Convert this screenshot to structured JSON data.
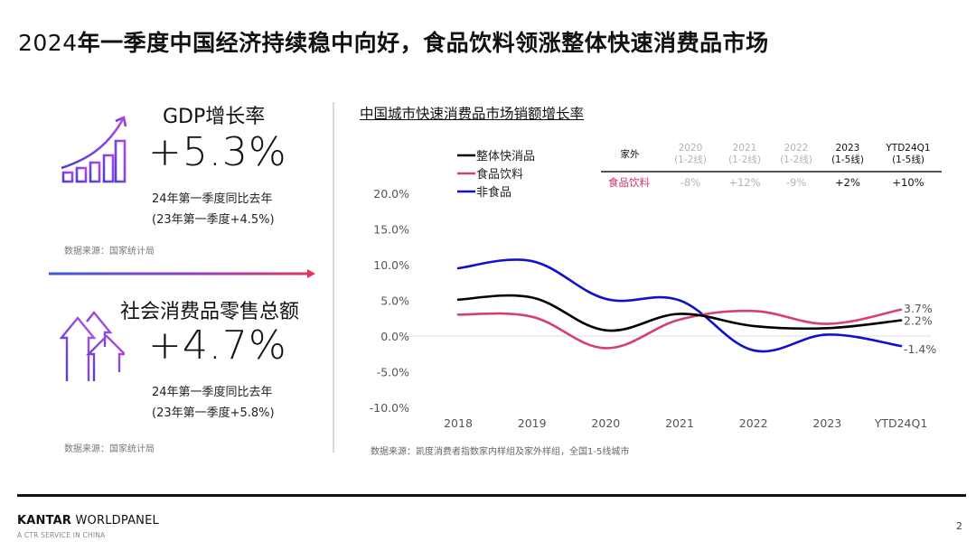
{
  "page": {
    "title_prefix": "2024",
    "title_rest": "年一季度中国经济持续稳中向好，食品饮料领涨整体快速消费品市场",
    "page_number": "2"
  },
  "kpis": [
    {
      "icon": "bar-chart-growth-icon",
      "title": "GDP增长率",
      "value": "+5.3%",
      "sub1": "24年第一季度同比去年",
      "sub2": "(23年第一季度+4.5%)",
      "source": "数据来源：国家统计局"
    },
    {
      "icon": "rising-arrows-icon",
      "title": "社会消费品零售总额",
      "value": "+4.7%",
      "sub1": "24年第一季度同比去年",
      "sub2": "(23年第一季度+5.8%)",
      "source": "数据来源：国家统计局"
    }
  ],
  "gradient": {
    "start": "#3a5bd9",
    "mid": "#8a3fd0",
    "end": "#e0355f"
  },
  "out_of_home_table": {
    "header_label": "家外",
    "columns": [
      {
        "line1": "2020",
        "line2": "(1-2线)",
        "style": "gray"
      },
      {
        "line1": "2021",
        "line2": "(1-2线)",
        "style": "gray"
      },
      {
        "line1": "2022",
        "line2": "(1-2线)",
        "style": "gray"
      },
      {
        "line1": "2023",
        "line2": "(1-5线)",
        "style": "dark"
      },
      {
        "line1": "YTD24Q1",
        "line2": "(1-5线)",
        "style": "dark"
      }
    ],
    "row_label": "食品饮料",
    "row_values": [
      "-8%",
      "+12%",
      "-9%",
      "+2%",
      "+10%"
    ],
    "row_label_color": "#d6336c"
  },
  "chart_data": {
    "type": "line",
    "title": "中国城市快速消费品市场销额增长率",
    "xlabel": "",
    "ylabel": "",
    "x": [
      "2018",
      "2019",
      "2020",
      "2021",
      "2022",
      "2023",
      "YTD24Q1"
    ],
    "ylim": [
      -10,
      20
    ],
    "yticks": [
      20,
      15,
      10,
      5,
      0,
      -5,
      -10
    ],
    "ytick_labels": [
      "20.0%",
      "15.0%",
      "10.0%",
      "5.0%",
      "0.0%",
      "-5.0%",
      "-10.0%"
    ],
    "grid": "zero-line only",
    "legend_position": "top-left",
    "smooth": true,
    "series": [
      {
        "name": "整体快消品",
        "color": "#000000",
        "values": [
          5.1,
          5.4,
          0.8,
          3.1,
          1.4,
          1.1,
          2.2
        ],
        "end_label": "2.2%"
      },
      {
        "name": "食品饮料",
        "color": "#d6406e",
        "values": [
          3.0,
          2.7,
          -1.7,
          2.3,
          3.5,
          1.7,
          3.7
        ],
        "end_label": "3.7%"
      },
      {
        "name": "非食品",
        "color": "#1010d0",
        "values": [
          9.5,
          10.5,
          5.2,
          5.0,
          -2.0,
          0.2,
          -1.4
        ],
        "end_label": "-1.4%"
      }
    ],
    "source": "数据来源：凯度消费者指数家内样组及家外样组，全国1-5线城市"
  },
  "footer": {
    "brand_bold": "KANTAR",
    "brand_rest": " WORLDPANEL",
    "brand_sub": "A CTR SERVICE IN CHINA"
  }
}
